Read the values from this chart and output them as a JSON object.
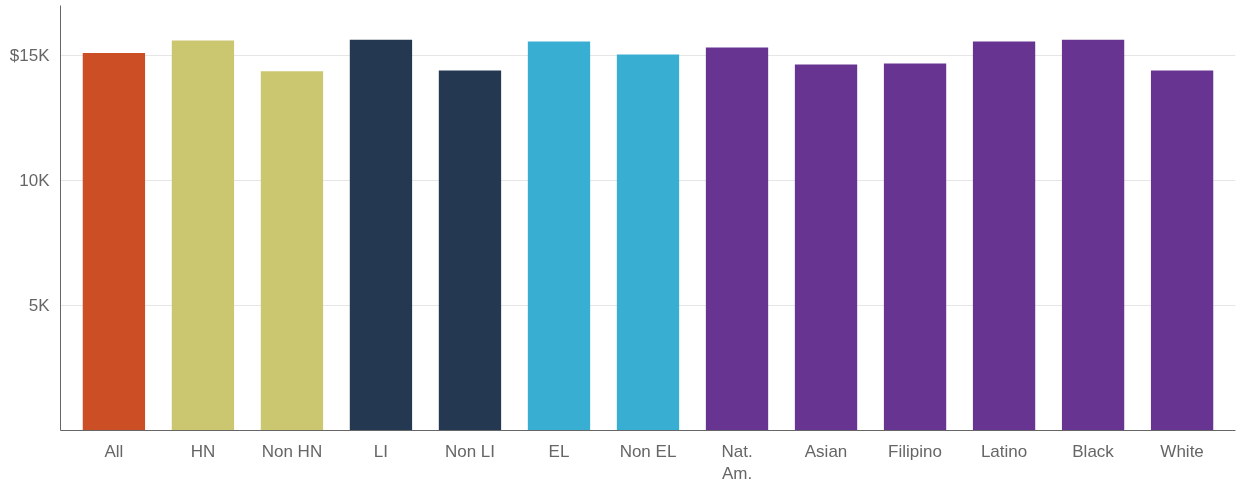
{
  "chart_data": {
    "type": "bar",
    "categories": [
      "All",
      "HN",
      "Non HN",
      "LI",
      "Non LI",
      "EL",
      "Non EL",
      "Nat.\nAm.",
      "Asian",
      "Filipino",
      "Latino",
      "Black",
      "White"
    ],
    "values": [
      15100,
      15600,
      14370,
      15630,
      14400,
      15560,
      15040,
      15320,
      14640,
      14680,
      15560,
      15630,
      14400
    ],
    "colors": [
      "#cc4e24",
      "#cbc771",
      "#cbc771",
      "#243851",
      "#243851",
      "#38aed3",
      "#38aed3",
      "#673491",
      "#673491",
      "#673491",
      "#673491",
      "#673491",
      "#673491"
    ],
    "ylim": [
      0,
      17000
    ],
    "yticks": [
      {
        "value": 5000,
        "label": "5K"
      },
      {
        "value": 10000,
        "label": "10K"
      },
      {
        "value": 15000,
        "label": "$15K"
      }
    ],
    "grid": "y"
  }
}
